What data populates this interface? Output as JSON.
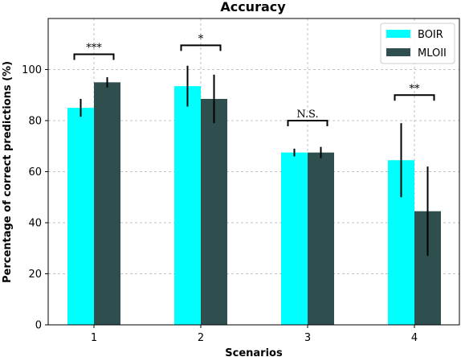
{
  "chart_data": {
    "type": "bar",
    "title": "Accuracy",
    "xlabel": "Scenarios",
    "ylabel": "Percentage of correct predictions (%)",
    "ylim": [
      0,
      120
    ],
    "yticks": [
      0,
      20,
      40,
      60,
      80,
      100
    ],
    "categories": [
      "1",
      "2",
      "3",
      "4"
    ],
    "grid": true,
    "legend_position": "top-right",
    "series": [
      {
        "name": "BOIR",
        "color": "#00ffff",
        "values": [
          85,
          93.5,
          67.5,
          64.5
        ],
        "errors": [
          3.5,
          8,
          1.5,
          14.5
        ]
      },
      {
        "name": "MLOII",
        "color": "#2f4f4f",
        "values": [
          95,
          88.5,
          67.5,
          44.5
        ],
        "errors": [
          2,
          9.5,
          2.2,
          17.5
        ]
      }
    ],
    "significance": [
      {
        "category": "1",
        "label": "***",
        "bracket_y": 106
      },
      {
        "category": "2",
        "label": "*",
        "bracket_y": 109.5
      },
      {
        "category": "3",
        "label": "N.S.",
        "bracket_y": 80
      },
      {
        "category": "4",
        "label": "**",
        "bracket_y": 90
      }
    ]
  }
}
